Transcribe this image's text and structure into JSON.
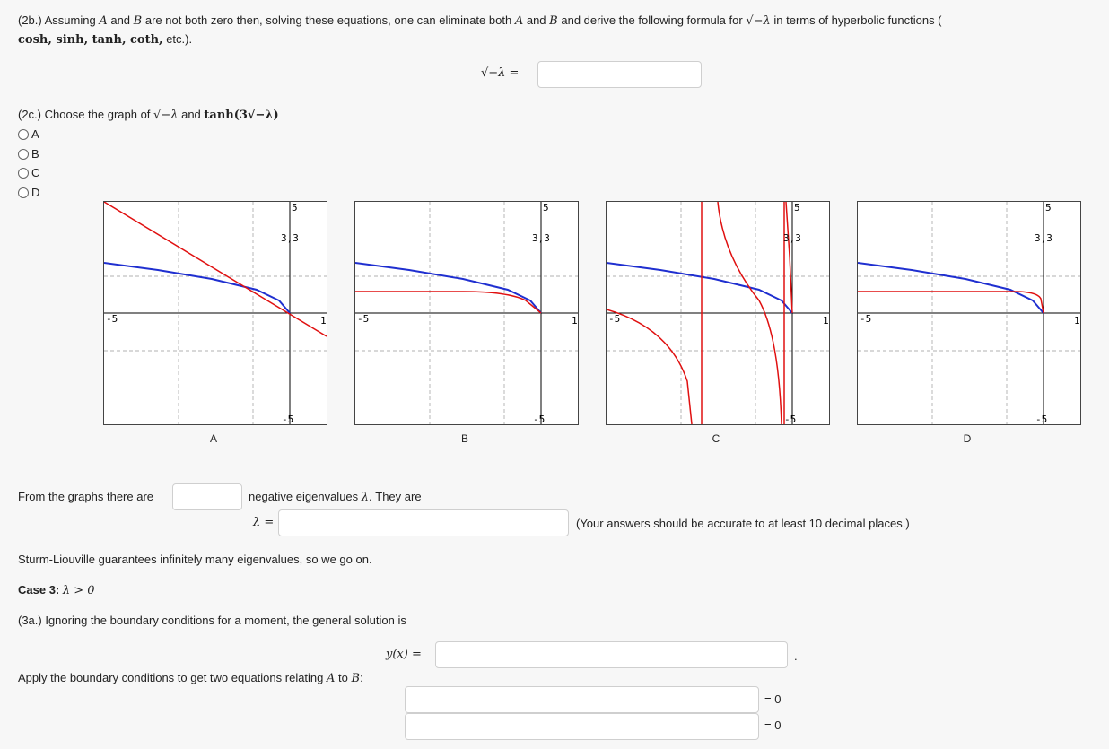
{
  "p2b": {
    "text_a": "(2b.) Assuming",
    "var_A": "A",
    "text_and": "and",
    "var_B": "B",
    "text_b": "are not both zero then, solving these equations, one can eliminate both",
    "text_c": "and derive the following formula for",
    "sqrt_expr": "√−λ",
    "text_d": "in terms of hyperbolic functions (",
    "funcs": "cosh, sinh, tanh, coth,",
    "text_e": "etc.).",
    "formula_label": "√−λ ="
  },
  "p2c": {
    "prompt_a": "(2c.) Choose the graph of",
    "sqrt_expr": "√−λ",
    "prompt_and": "and",
    "tanh_expr": "tanh(3√−λ)",
    "options": [
      "A",
      "B",
      "C",
      "D"
    ]
  },
  "graphs": [
    {
      "label": "A",
      "tick_top": "5",
      "tick_bottom": "-5",
      "tick_left": "-5",
      "tick_right": "1",
      "tick_pt": "3,3"
    },
    {
      "label": "B",
      "tick_top": "5",
      "tick_bottom": "-5",
      "tick_left": "-5",
      "tick_right": "1",
      "tick_pt": "3,3"
    },
    {
      "label": "C",
      "tick_top": "5",
      "tick_bottom": "-5",
      "tick_left": "-5",
      "tick_right": "1",
      "tick_pt": "3,3"
    },
    {
      "label": "D",
      "tick_top": "5",
      "tick_bottom": "-5",
      "tick_left": "-5",
      "tick_right": "1",
      "tick_pt": "3,3"
    }
  ],
  "colors": {
    "curve_sqrt": "#1f2fd0",
    "curve_tanh": "#e01010"
  },
  "eigen": {
    "text_a": "From the graphs there are",
    "text_b": "negative eigenvalues",
    "lambda": "λ",
    "text_c": ". They are",
    "lambda_eq": "λ =",
    "note": "(Your answers should be accurate to at least 10 decimal places.)"
  },
  "sturm": "Sturm-Liouville guarantees infinitely many eigenvalues, so we go on.",
  "case3": {
    "label": "Case 3:",
    "cond": "λ > 0"
  },
  "p3a": {
    "text": "(3a.) Ignoring the boundary conditions for a moment, the general solution is",
    "y_label": "y(x) =",
    "period": "."
  },
  "apply": {
    "text": "Apply the boundary conditions to get two equations relating",
    "var_A": "A",
    "to": "to",
    "var_B": "B",
    "colon": ":",
    "eq_zero": "= 0"
  }
}
